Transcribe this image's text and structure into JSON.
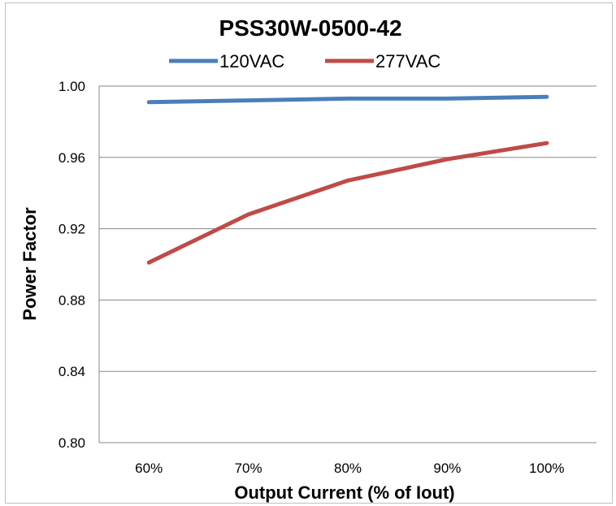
{
  "chart_data": {
    "type": "line",
    "title": "PSS30W-0500-42",
    "xlabel": "Output Current (% of Iout)",
    "ylabel": "Power Factor",
    "categories": [
      "60%",
      "70%",
      "80%",
      "90%",
      "100%"
    ],
    "ylim": [
      0.8,
      1.0
    ],
    "yticks": [
      0.8,
      0.84,
      0.88,
      0.92,
      0.96,
      1.0
    ],
    "ytick_labels": [
      "0.80",
      "0.84",
      "0.88",
      "0.92",
      "0.96",
      "1.00"
    ],
    "grid": true,
    "legend_position": "top",
    "series": [
      {
        "name": "120VAC",
        "color": "#4a7ebb",
        "values": [
          0.991,
          0.992,
          0.993,
          0.993,
          0.994
        ]
      },
      {
        "name": "277VAC",
        "color": "#be4b48",
        "values": [
          0.901,
          0.928,
          0.947,
          0.959,
          0.968
        ]
      }
    ]
  }
}
